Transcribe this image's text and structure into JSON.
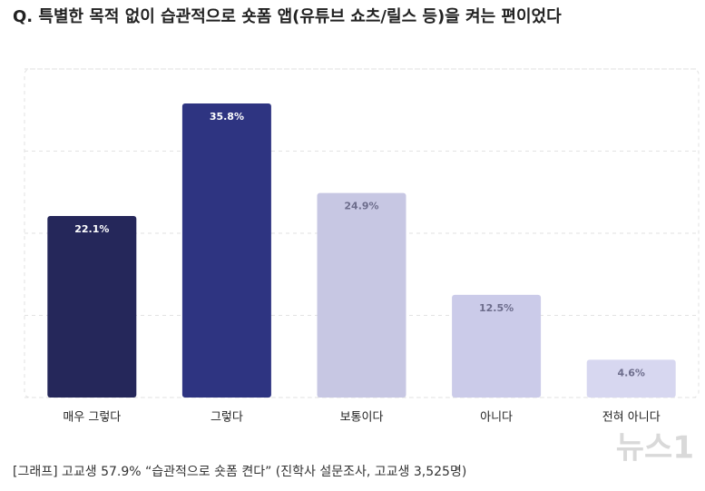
{
  "chart_data": {
    "type": "bar",
    "title": "Q. 특별한 목적 없이 습관적으로 숏폼 앱(유튜브 쇼츠/릴스 등)을 켜는 편이었다",
    "categories": [
      "매우 그렇다",
      "그렇다",
      "보통이다",
      "아니다",
      "전혀 아니다"
    ],
    "values": [
      22.1,
      35.8,
      24.9,
      12.5,
      4.6
    ],
    "value_labels": [
      "22.1%",
      "35.8%",
      "24.9%",
      "12.5%",
      "4.6%"
    ],
    "colors": [
      "#25275a",
      "#2e3481",
      "#c7c7e3",
      "#cbcbe9",
      "#d7d7f0"
    ],
    "label_colors": [
      "#ffffff",
      "#ffffff",
      "#6d6d8c",
      "#6d6d8c",
      "#6d6d8c"
    ],
    "ylim": [
      0,
      40
    ],
    "yticks": [
      0,
      10,
      20,
      30,
      40
    ],
    "grid": true,
    "caption": "[그래프] 고교생 57.9% “습관적으로 숏폼 켠다” (진학사 설문조사, 고교생 3,525명)",
    "watermark": "뉴스1"
  }
}
